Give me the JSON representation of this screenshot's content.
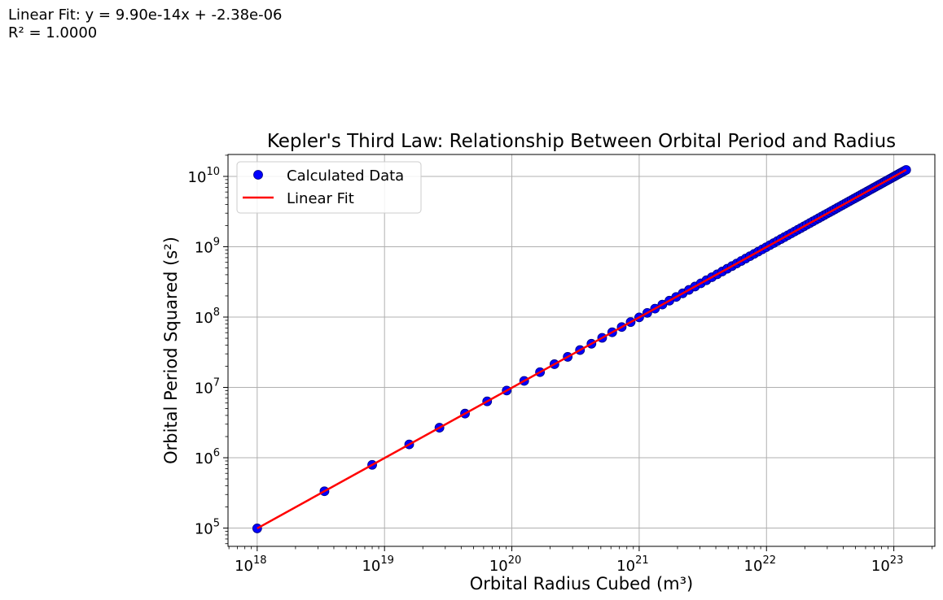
{
  "annotation": {
    "line1": "Linear Fit: y = 9.90e-14x + -2.38e-06",
    "line2": "R² = 1.0000"
  },
  "chart_data": {
    "type": "scatter",
    "title": "Kepler's Third Law: Relationship Between Orbital Period and Radius",
    "xlabel": "Orbital Radius Cubed (m³)",
    "ylabel": "Orbital Period Squared (s²)",
    "xscale": "log",
    "yscale": "log",
    "xlim": [
      5.9e+17,
      2.1e+23
    ],
    "ylim": [
      55000.0,
      20500000000.0
    ],
    "grid": true,
    "legend_position": "top-left",
    "x_ticks": [
      1e+18,
      1e+19,
      1e+20,
      1e+21,
      1e+22,
      1e+23
    ],
    "x_tick_labels": [
      {
        "base": "10",
        "exp": "18"
      },
      {
        "base": "10",
        "exp": "19"
      },
      {
        "base": "10",
        "exp": "20"
      },
      {
        "base": "10",
        "exp": "21"
      },
      {
        "base": "10",
        "exp": "22"
      },
      {
        "base": "10",
        "exp": "23"
      }
    ],
    "y_ticks": [
      100000.0,
      1000000.0,
      10000000.0,
      100000000.0,
      1000000000.0,
      10000000000.0
    ],
    "y_tick_labels": [
      {
        "base": "10",
        "exp": "5"
      },
      {
        "base": "10",
        "exp": "6"
      },
      {
        "base": "10",
        "exp": "7"
      },
      {
        "base": "10",
        "exp": "8"
      },
      {
        "base": "10",
        "exp": "9"
      },
      {
        "base": "10",
        "exp": "10"
      }
    ],
    "series": [
      {
        "name": "Calculated Data",
        "kind": "scatter",
        "color": "#0000ff",
        "edge_color": "#000080",
        "radius_x": [
          1000000.0,
          1500000.0,
          2000000.0,
          2500000.0,
          3000000.0,
          3500000.0,
          4000000.0,
          4500000.0,
          5000000.0,
          5500000.0,
          6000000.0,
          6500000.0,
          7000000.0,
          7500000.0,
          8000000.0,
          8500000.0,
          9000000.0,
          9500000.0,
          10000000.0,
          10500000.0,
          11000000.0,
          11500000.0,
          12000000.0,
          12500000.0,
          13000000.0,
          13500000.0,
          14000000.0,
          14500000.0,
          15000000.0,
          15500000.0,
          16000000.0,
          16500000.0,
          17000000.0,
          17500000.0,
          18000000.0,
          18500000.0,
          19000000.0,
          19500000.0,
          20000000.0,
          20500000.0,
          21000000.0,
          21500000.0,
          22000000.0,
          22500000.0,
          23000000.0,
          23500000.0,
          24000000.0,
          24500000.0,
          25000000.0,
          25500000.0,
          26000000.0,
          26500000.0,
          27000000.0,
          27500000.0,
          28000000.0,
          28500000.0,
          29000000.0,
          29500000.0,
          30000000.0,
          30500000.0,
          31000000.0,
          31500000.0,
          32000000.0,
          32500000.0,
          33000000.0,
          33500000.0,
          34000000.0,
          34500000.0,
          35000000.0,
          35500000.0,
          36000000.0,
          36500000.0,
          37000000.0,
          37500000.0,
          38000000.0,
          38500000.0,
          39000000.0,
          39500000.0,
          40000000.0,
          40500000.0,
          41000000.0,
          41500000.0,
          42000000.0,
          42500000.0,
          43000000.0,
          43500000.0,
          44000000.0,
          44500000.0,
          45000000.0,
          45500000.0,
          46000000.0,
          46500000.0,
          47000000.0,
          47500000.0,
          48000000.0,
          48500000.0,
          49000000.0,
          49500000.0,
          50000000.0
        ],
        "x_is_radius_cubed": true,
        "slope": 9.9e-14
      },
      {
        "name": "Linear Fit",
        "kind": "line",
        "color": "#ff0000",
        "x": [
          1e+18,
          1.25e+23
        ],
        "y": [
          99000.0,
          12375000000.0
        ]
      }
    ]
  }
}
